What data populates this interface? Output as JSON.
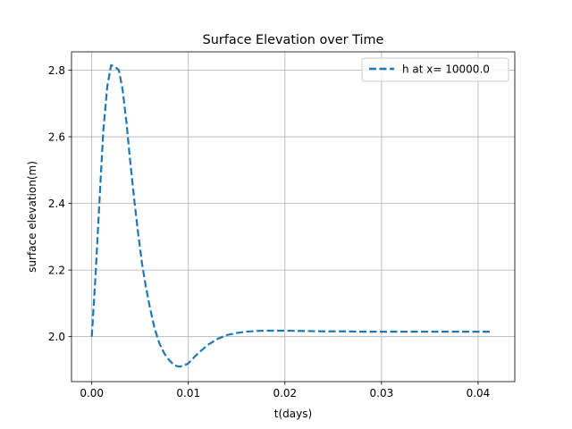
{
  "chart_data": {
    "type": "line",
    "title": "Surface Elevation over Time",
    "xlabel": "t(days)",
    "ylabel": "surface elevation(m)",
    "xlim": [
      -0.0021,
      0.0438
    ],
    "ylim": [
      1.865,
      2.855
    ],
    "xticks": [
      0.0,
      0.01,
      0.02,
      0.03,
      0.04
    ],
    "xtick_labels": [
      "0.00",
      "0.01",
      "0.02",
      "0.03",
      "0.04"
    ],
    "yticks": [
      2.0,
      2.2,
      2.4,
      2.6,
      2.8
    ],
    "ytick_labels": [
      "2.0",
      "2.2",
      "2.4",
      "2.6",
      "2.8"
    ],
    "grid": true,
    "legend_position": "top-right",
    "series": [
      {
        "name": "h at x= 10000.0",
        "color": "#1f77b4",
        "linestyle": "dashed",
        "x": [
          0.0,
          0.0004,
          0.0008,
          0.0012,
          0.0016,
          0.002,
          0.0024,
          0.0028,
          0.0032,
          0.0036,
          0.004,
          0.0044,
          0.0048,
          0.0052,
          0.0056,
          0.006,
          0.0065,
          0.007,
          0.0075,
          0.008,
          0.0085,
          0.009,
          0.0095,
          0.01,
          0.0105,
          0.011,
          0.012,
          0.013,
          0.014,
          0.015,
          0.016,
          0.017,
          0.018,
          0.019,
          0.02,
          0.022,
          0.024,
          0.026,
          0.028,
          0.03,
          0.032,
          0.034,
          0.036,
          0.038,
          0.04,
          0.0415
        ],
        "values": [
          2.0,
          2.19,
          2.41,
          2.62,
          2.75,
          2.815,
          2.81,
          2.8,
          2.74,
          2.64,
          2.52,
          2.41,
          2.31,
          2.22,
          2.15,
          2.09,
          2.025,
          1.98,
          1.95,
          1.93,
          1.915,
          1.91,
          1.912,
          1.92,
          1.935,
          1.95,
          1.975,
          1.993,
          2.005,
          2.011,
          2.015,
          2.017,
          2.018,
          2.018,
          2.018,
          2.017,
          2.016,
          2.016,
          2.015,
          2.015,
          2.015,
          2.015,
          2.015,
          2.015,
          2.015,
          2.015
        ]
      }
    ]
  }
}
